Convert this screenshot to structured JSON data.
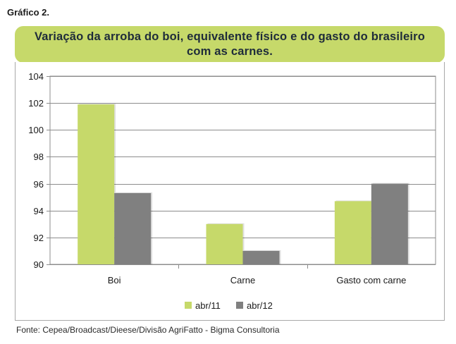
{
  "header": {
    "figure_label": "Gráfico 2.",
    "title_line1": "Variação da arroba do boi, equivalente físico e do gasto do brasileiro",
    "title_line2": "com as carnes."
  },
  "footer": {
    "source": "Fonte: Cepea/Broadcast/Dieese/Divisão AgriFatto - Bigma Consultoria"
  },
  "colors": {
    "abr_11": "#c6d96a",
    "abr_12": "#808080",
    "title_bg": "#c6d96a"
  },
  "chart_data": {
    "type": "bar",
    "title": "Variação da arroba do boi, equivalente físico e do gasto do brasileiro com as carnes.",
    "categories": [
      "Boi",
      "Carne",
      "Gasto com carne"
    ],
    "series": [
      {
        "name": "abr/11",
        "values": [
          101.9,
          93.0,
          94.7
        ]
      },
      {
        "name": "abr/12",
        "values": [
          95.3,
          91.0,
          96.0
        ]
      }
    ],
    "ylim": [
      90,
      104
    ],
    "yticks": [
      90,
      92,
      94,
      96,
      98,
      100,
      102,
      104
    ],
    "xlabel": "",
    "ylabel": "",
    "grid": true,
    "legend_position": "bottom"
  }
}
